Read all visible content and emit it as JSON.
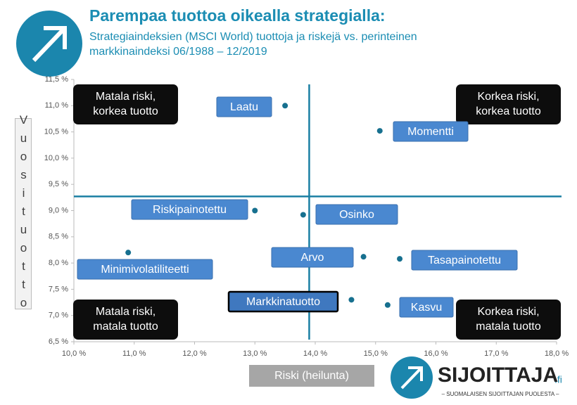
{
  "chart_data": {
    "type": "scatter",
    "title": "Parempaa tuottoa oikealla strategialla:",
    "subtitle": [
      "Strategiaindeksien (MSCI World) tuottoja ja riskejä vs. perinteinen",
      "markkinaindeksi 06/1988 – 12/2019"
    ],
    "xlabel": "Riski (heilunta)",
    "ylabel": "Vuosituotto",
    "points": [
      {
        "name": "Laatu",
        "x": 13.5,
        "y": 11.0
      },
      {
        "name": "Momentti",
        "x": 15.07,
        "y": 10.52
      },
      {
        "name": "Riskipainotettu",
        "x": 13.0,
        "y": 9.0
      },
      {
        "name": "Osinko",
        "x": 13.8,
        "y": 8.92
      },
      {
        "name": "Arvo",
        "x": 14.8,
        "y": 8.12
      },
      {
        "name": "Tasapainotettu",
        "x": 15.4,
        "y": 8.08
      },
      {
        "name": "Minimivolatiliteetti",
        "x": 10.9,
        "y": 8.2
      },
      {
        "name": "Markkinatuotto",
        "x": 14.6,
        "y": 7.3
      },
      {
        "name": "Kasvu",
        "x": 15.2,
        "y": 7.2
      }
    ],
    "color": "#17708f",
    "reference_lines": {
      "x": 13.9,
      "y": 9.27,
      "color": "#1a7fa3"
    },
    "quadrants": {
      "top_left": "Matala riski,\nkorkea tuotto",
      "top_right": "Korkea riski,\nkorkea tuotto",
      "bottom_left": "Matala riski,\nmatala tuotto",
      "bottom_right": "Korkea riski,\nmatala tuotto"
    },
    "xlim": [
      10.0,
      18.0
    ],
    "ylim": [
      6.5,
      11.5
    ],
    "xticks": [
      {
        "value": 10.0,
        "label": "10,0 %"
      },
      {
        "value": 11.0,
        "label": "11,0 %"
      },
      {
        "value": 12.0,
        "label": "12,0 %"
      },
      {
        "value": 13.0,
        "label": "13,0 %"
      },
      {
        "value": 14.0,
        "label": "14,0 %"
      },
      {
        "value": 15.0,
        "label": "15,0 %"
      },
      {
        "value": 16.0,
        "label": "16,0 %"
      },
      {
        "value": 17.0,
        "label": "17,0 %"
      },
      {
        "value": 18.0,
        "label": "18,0 %"
      }
    ],
    "yticks": [
      {
        "value": 6.5,
        "label": "6,5 %"
      },
      {
        "value": 7.0,
        "label": "7,0 %"
      },
      {
        "value": 7.5,
        "label": "7,5 %"
      },
      {
        "value": 8.0,
        "label": "8,0 %"
      },
      {
        "value": 8.5,
        "label": "8,5 %"
      },
      {
        "value": 9.0,
        "label": "9,0 %"
      },
      {
        "value": 9.5,
        "label": "9,5 %"
      },
      {
        "value": 10.0,
        "label": "10,0 %"
      },
      {
        "value": 10.5,
        "label": "10,5 %"
      },
      {
        "value": 11.0,
        "label": "11,0 %"
      },
      {
        "value": 11.5,
        "label": "11,5 %"
      }
    ],
    "logo": {
      "name": "SIJOITTAJA",
      "suffix": ".fi",
      "tagline": "– SUOMALAISEN SIJOITTAJAN PUOLESTA –"
    }
  }
}
